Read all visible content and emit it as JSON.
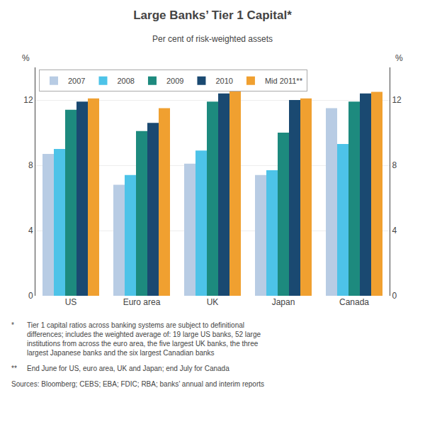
{
  "chart_data": {
    "type": "bar",
    "title": "Large Banks’ Tier 1 Capital*",
    "subtitle": "Per cent of risk-weighted assets",
    "ylabel": "%",
    "y2label": "%",
    "categories": [
      "US",
      "Euro area",
      "UK",
      "Japan",
      "Canada"
    ],
    "series": [
      {
        "name": "2007",
        "color": "#b8cce4",
        "values": [
          8.7,
          6.8,
          8.1,
          7.4,
          11.5
        ]
      },
      {
        "name": "2008",
        "color": "#4dc3e8",
        "values": [
          9.0,
          7.4,
          8.9,
          7.7,
          9.3
        ]
      },
      {
        "name": "2009",
        "color": "#1d8a7e",
        "values": [
          11.4,
          10.1,
          11.9,
          10.0,
          11.9
        ]
      },
      {
        "name": "2010",
        "color": "#1a4971",
        "values": [
          11.9,
          10.6,
          12.4,
          12.0,
          12.4
        ]
      },
      {
        "name": "Mid 2011**",
        "color": "#f0a030",
        "values": [
          12.1,
          11.5,
          12.6,
          12.1,
          12.5
        ]
      }
    ],
    "ylim": [
      0,
      14
    ],
    "yticks": [
      0,
      4,
      8,
      12
    ],
    "y2lim": [
      0,
      14
    ],
    "y2ticks": [
      0,
      4,
      8,
      12
    ],
    "grid": true,
    "legend": "upper left",
    "annotations": [
      [
        "*",
        "Tier 1 capital ratios across banking systems are subject to definitional\ndifferences; includes the weighted average of: 19 large US banks, 52 large\ninstitutions from across the euro area, the five largest UK banks, the three\nlargest Japanese banks and the six largest Canadian banks"
      ],
      [
        "**",
        "End June for US, euro area, UK and Japan; end July for Canada"
      ],
      [
        "Sources: Bloomberg; CEBS; EBA; FDIC; RBA; banks’ annual and interim reports"
      ]
    ]
  }
}
